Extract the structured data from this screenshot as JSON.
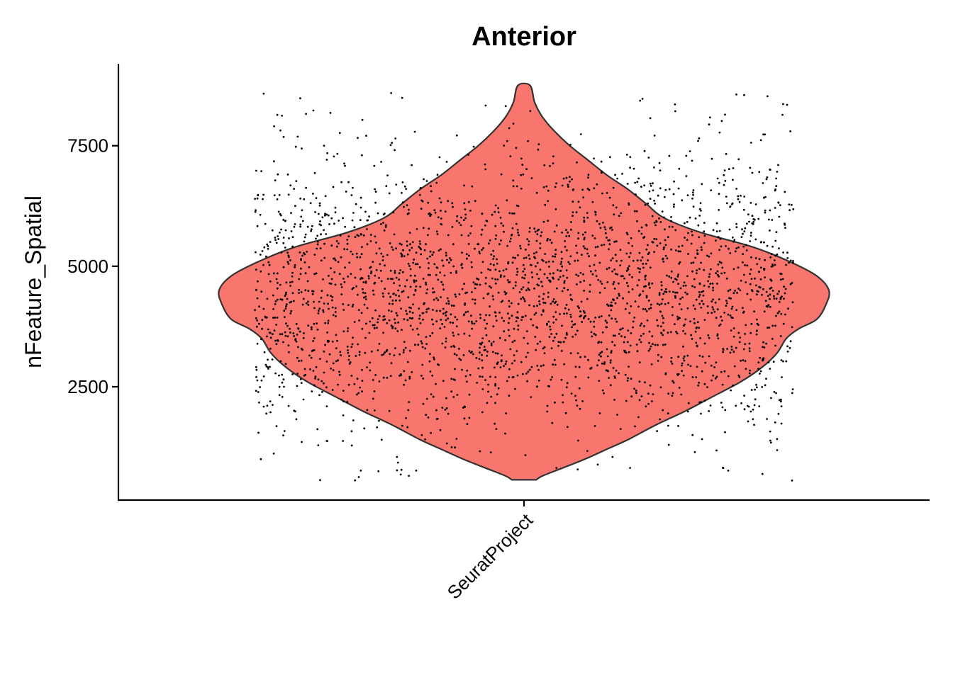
{
  "chart_data": {
    "type": "violin",
    "title": "Anterior",
    "xlabel": "",
    "ylabel": "nFeature_Spatial",
    "categories": [
      "SeuratProject"
    ],
    "yticks": [
      2500,
      5000,
      7500
    ],
    "ylim": [
      150,
      9200
    ],
    "grid": false,
    "legend": "none",
    "fill_color": "#F8766D",
    "outline_color": "#333333",
    "point_color": "#000000",
    "violin": {
      "min": 570,
      "max": 8750,
      "density_profile": [
        [
          570,
          0.04
        ],
        [
          650,
          0.06
        ],
        [
          800,
          0.12
        ],
        [
          1000,
          0.2
        ],
        [
          1200,
          0.27
        ],
        [
          1400,
          0.34
        ],
        [
          1700,
          0.43
        ],
        [
          2000,
          0.53
        ],
        [
          2300,
          0.62
        ],
        [
          2600,
          0.71
        ],
        [
          2900,
          0.78
        ],
        [
          3200,
          0.83
        ],
        [
          3500,
          0.86
        ],
        [
          3700,
          0.9
        ],
        [
          3900,
          0.96
        ],
        [
          4200,
          0.99
        ],
        [
          4500,
          1.0
        ],
        [
          4800,
          0.96
        ],
        [
          5100,
          0.87
        ],
        [
          5400,
          0.75
        ],
        [
          5700,
          0.58
        ],
        [
          6000,
          0.46
        ],
        [
          6300,
          0.4
        ],
        [
          6600,
          0.34
        ],
        [
          6900,
          0.27
        ],
        [
          7200,
          0.21
        ],
        [
          7500,
          0.15
        ],
        [
          7800,
          0.1
        ],
        [
          8100,
          0.06
        ],
        [
          8400,
          0.035
        ],
        [
          8750,
          0.02
        ]
      ]
    },
    "points": {
      "n": 2695,
      "mean": 4400,
      "sd": 1500,
      "min": 550,
      "max": 8800,
      "jitter": 0.4
    }
  }
}
